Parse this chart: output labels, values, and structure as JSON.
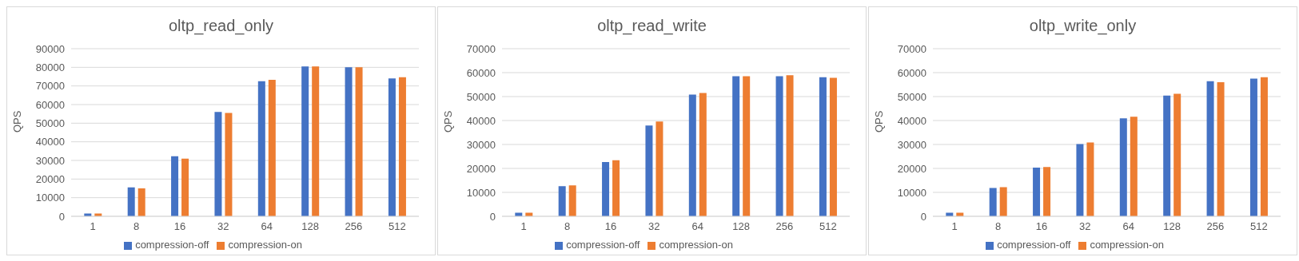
{
  "chart_data": [
    {
      "type": "bar",
      "title": "oltp_read_only",
      "ylabel": "QPS",
      "categories": [
        "1",
        "8",
        "16",
        "32",
        "64",
        "128",
        "256",
        "512"
      ],
      "series": [
        {
          "name": "compression-off",
          "color": "#4472c4",
          "values": [
            1500,
            15500,
            32300,
            56000,
            72500,
            80500,
            80000,
            74000
          ]
        },
        {
          "name": "compression-on",
          "color": "#ed7d31",
          "values": [
            1500,
            15000,
            31000,
            55500,
            73300,
            80500,
            80000,
            74700
          ]
        }
      ],
      "ylim": [
        0,
        90000
      ],
      "yticks": [
        0,
        10000,
        20000,
        30000,
        40000,
        50000,
        60000,
        70000,
        80000,
        90000
      ],
      "grid": "y",
      "legend": "bottom"
    },
    {
      "type": "bar",
      "title": "oltp_read_write",
      "ylabel": "QPS",
      "categories": [
        "1",
        "8",
        "16",
        "32",
        "64",
        "128",
        "256",
        "512"
      ],
      "series": [
        {
          "name": "compression-off",
          "color": "#4472c4",
          "values": [
            1500,
            12600,
            22700,
            37900,
            50800,
            58500,
            58500,
            58100
          ]
        },
        {
          "name": "compression-on",
          "color": "#ed7d31",
          "values": [
            1500,
            12900,
            23400,
            39600,
            51500,
            58500,
            58900,
            57800
          ]
        }
      ],
      "ylim": [
        0,
        70000
      ],
      "yticks": [
        0,
        10000,
        20000,
        30000,
        40000,
        50000,
        60000,
        70000
      ],
      "grid": "y",
      "legend": "bottom"
    },
    {
      "type": "bar",
      "title": "oltp_write_only",
      "ylabel": "QPS",
      "categories": [
        "1",
        "8",
        "16",
        "32",
        "64",
        "128",
        "256",
        "512"
      ],
      "series": [
        {
          "name": "compression-off",
          "color": "#4472c4",
          "values": [
            1500,
            11800,
            20300,
            30200,
            40900,
            50400,
            56400,
            57500
          ]
        },
        {
          "name": "compression-on",
          "color": "#ed7d31",
          "values": [
            1500,
            12200,
            20600,
            30800,
            41600,
            51200,
            56000,
            58100
          ]
        }
      ],
      "ylim": [
        0,
        70000
      ],
      "yticks": [
        0,
        10000,
        20000,
        30000,
        40000,
        50000,
        60000,
        70000
      ],
      "grid": "y",
      "legend": "bottom"
    }
  ]
}
